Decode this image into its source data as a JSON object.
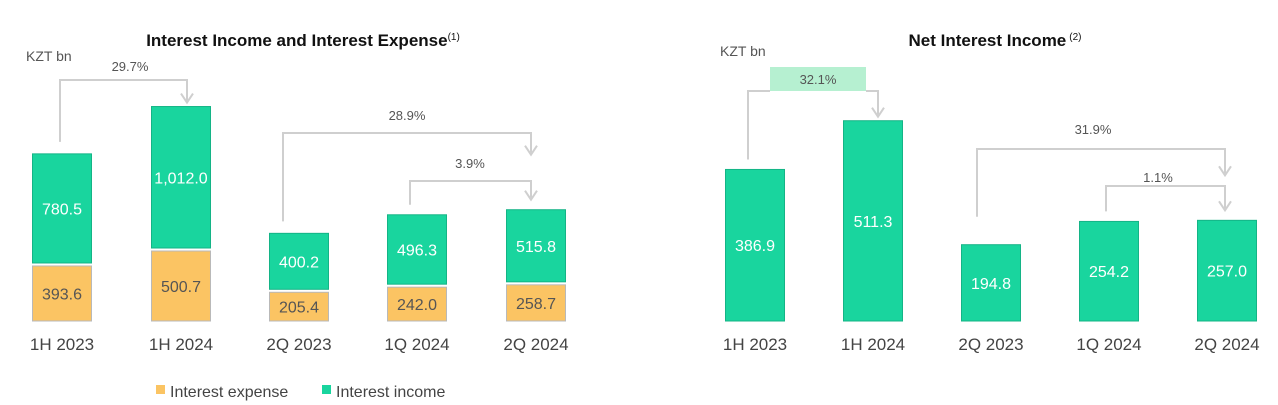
{
  "colors": {
    "income": "#19d59e",
    "income_stroke": "#14b486",
    "expense": "#fbc463",
    "expense_stroke": "#b9b9b9",
    "arrow": "#cfcfcf",
    "highlight": "#b6f0d1"
  },
  "chart_data": [
    {
      "type": "bar",
      "stacked": true,
      "title": "Interest Income and Interest Expense",
      "title_note": "(1)",
      "unit": "KZT bn",
      "categories": [
        "1H 2023",
        "1H 2024",
        "2Q 2023",
        "1Q 2024",
        "2Q 2024"
      ],
      "series": [
        {
          "name": "Interest expense",
          "values": [
            393.6,
            500.7,
            205.4,
            242.0,
            258.7
          ]
        },
        {
          "name": "Interest income",
          "values": [
            780.5,
            1012.0,
            400.2,
            496.3,
            515.8
          ]
        }
      ],
      "value_labels": {
        "expense": [
          "393.6",
          "500.7",
          "205.4",
          "242.0",
          "258.7"
        ],
        "income": [
          "780.5",
          "1,012.0",
          "400.2",
          "496.3",
          "515.8"
        ]
      },
      "growth_annotations": [
        {
          "from": "1H 2023",
          "to": "1H 2024",
          "label": "29.7%"
        },
        {
          "from": "2Q 2023",
          "to": "2Q 2024",
          "label": "28.9%"
        },
        {
          "from": "1Q 2024",
          "to": "2Q 2024",
          "label": "3.9%"
        }
      ],
      "legend": {
        "position": "bottom",
        "items": [
          "Interest expense",
          "Interest income"
        ]
      }
    },
    {
      "type": "bar",
      "title": "Net Interest Income",
      "title_note": "(2)",
      "unit": "KZT bn",
      "categories": [
        "1H 2023",
        "1H 2024",
        "2Q 2023",
        "1Q 2024",
        "2Q 2024"
      ],
      "series": [
        {
          "name": "Net Interest Income",
          "values": [
            386.9,
            511.3,
            194.8,
            254.2,
            257.0
          ]
        }
      ],
      "value_labels": [
        "386.9",
        "511.3",
        "194.8",
        "254.2",
        "257.0"
      ],
      "growth_annotations": [
        {
          "from": "1H 2023",
          "to": "1H 2024",
          "label": "32.1%",
          "highlighted": true
        },
        {
          "from": "2Q 2023",
          "to": "2Q 2024",
          "label": "31.9%"
        },
        {
          "from": "1Q 2024",
          "to": "2Q 2024",
          "label": "1.1%"
        }
      ]
    }
  ]
}
